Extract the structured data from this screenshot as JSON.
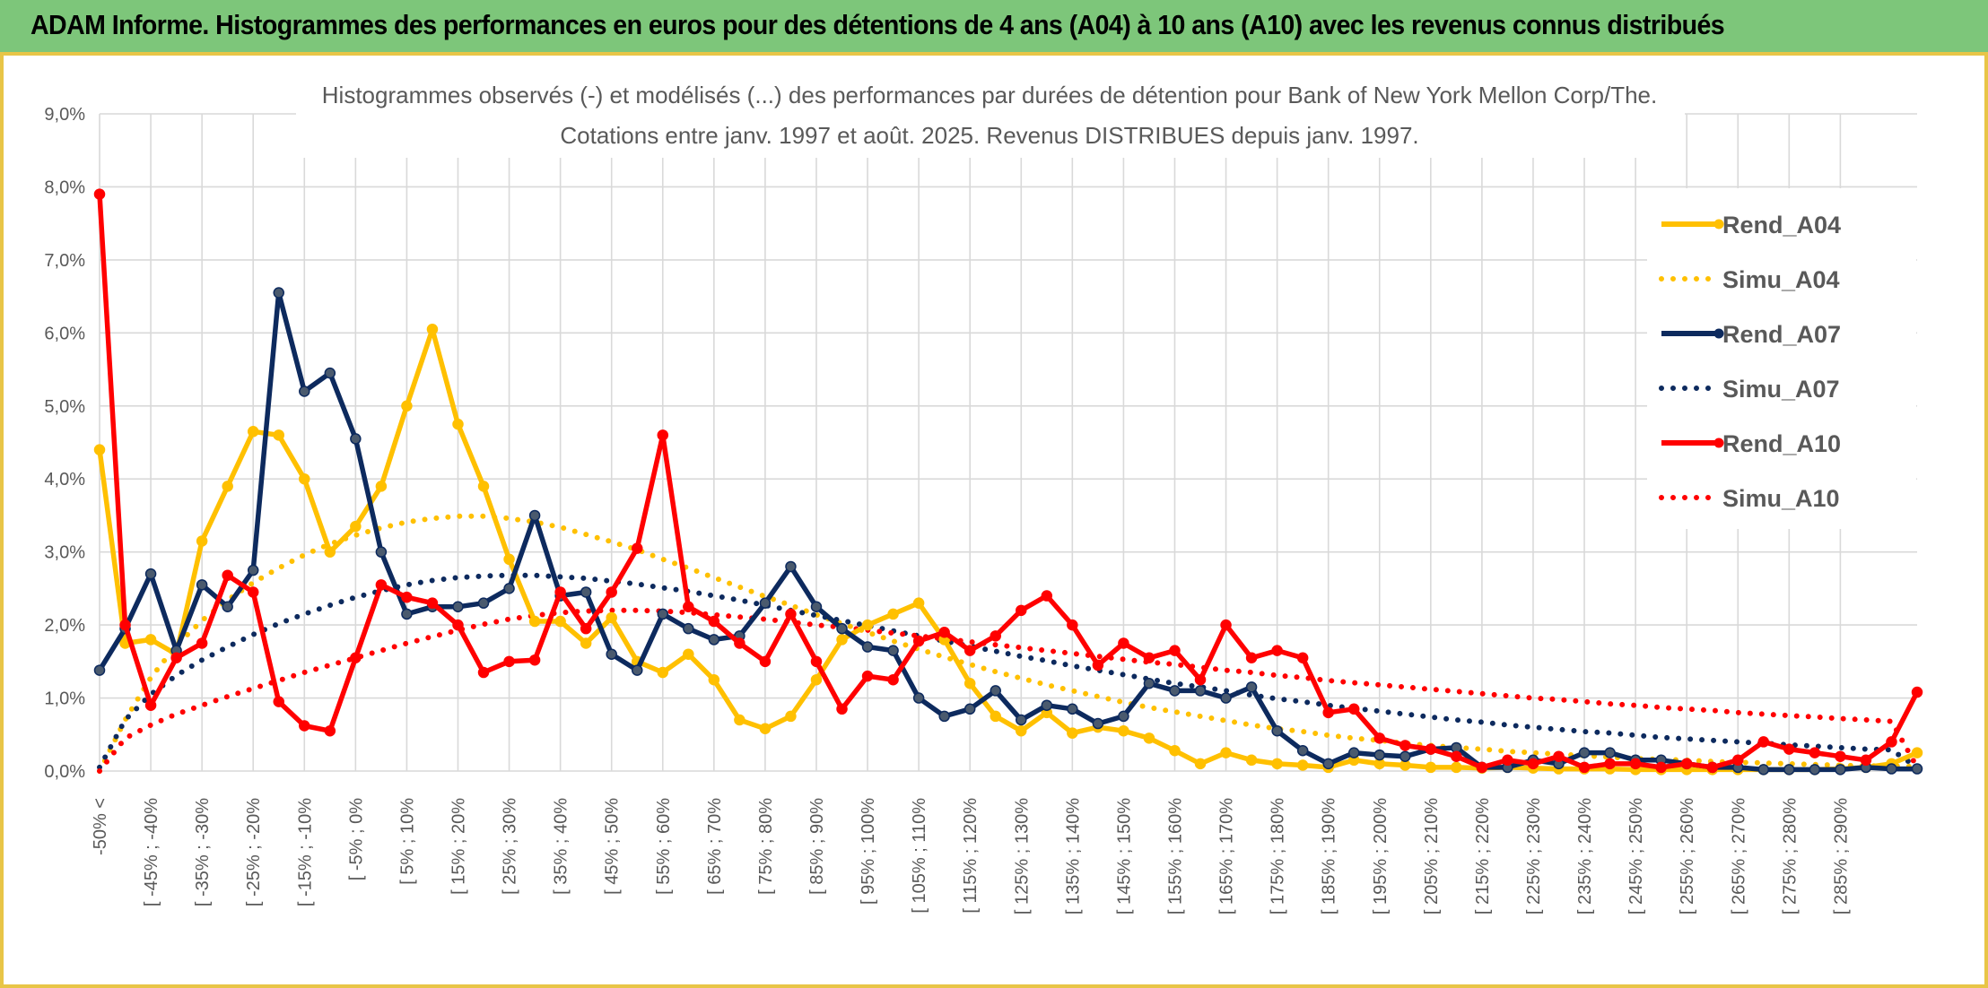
{
  "header": {
    "title": "ADAM Informe. Histogrammes des performances en euros pour des détentions de 4 ans (A04) à 10 ans (A10) avec les revenus connus distribués"
  },
  "chart_data": {
    "type": "line",
    "title_line1": "Histogrammes observés (-) et modélisés (...) des performances par durées de détention pour Bank of New York Mellon Corp/The.",
    "title_line2": "Cotations entre janv. 1997 et août. 2025. Revenus DISTRIBUES depuis janv. 1997.",
    "ylim": [
      0,
      9
    ],
    "yticks": [
      "0,0%",
      "1,0%",
      "2,0%",
      "3,0%",
      "4,0%",
      "5,0%",
      "6,0%",
      "7,0%",
      "8,0%",
      "9,0%"
    ],
    "y_unit": "%",
    "grid": true,
    "legend_position": "right",
    "x_labels": [
      "-50% <",
      "[ -45% ; -40%",
      "[ -35% ; -30%",
      "[ -25% ; -20%",
      "[ -15% ; -10%",
      "[ -5% ; 0%",
      "[ 5% ; 10%",
      "[ 15% ; 20%",
      "[ 25% ; 30%",
      "[ 35% ; 40%",
      "[ 45% ; 50%",
      "[ 55% ; 60%",
      "[ 65% ; 70%",
      "[ 75% ; 80%",
      "[ 85% ; 90%",
      "[ 95% ; 100%",
      "[ 105% ; 110%",
      "[ 115% ; 120%",
      "[ 125% ; 130%",
      "[ 135% ; 140%",
      "[ 145% ; 150%",
      "[ 155% ; 160%",
      "[ 165% ; 170%",
      "[ 175% ; 180%",
      "[ 185% ; 190%",
      "[ 195% ; 200%",
      "[ 205% ; 210%",
      "[ 215% ; 220%",
      "[ 225% ; 230%",
      "[ 235% ; 240%",
      "[ 245% ; 250%",
      "[ 255% ; 260%",
      "[ 265% ; 270%",
      "[ 275% ; 280%",
      "[ 285% ; 290%"
    ],
    "series": [
      {
        "name": "Rend_A04",
        "style": "solid",
        "color": "#ffc000",
        "values": [
          4.4,
          1.75,
          1.8,
          1.6,
          3.15,
          3.9,
          4.65,
          4.6,
          4.0,
          3.0,
          3.35,
          3.9,
          5.0,
          6.05,
          4.75,
          3.9,
          2.9,
          2.05,
          2.05,
          1.75,
          2.1,
          1.5,
          1.35,
          1.6,
          1.25,
          0.7,
          0.58,
          0.75,
          1.25,
          1.8,
          2.0,
          2.15,
          2.3,
          1.8,
          1.2,
          0.75,
          0.55,
          0.8,
          0.52,
          0.6,
          0.55,
          0.45,
          0.28,
          0.1,
          0.25,
          0.15,
          0.1,
          0.08,
          0.05,
          0.15,
          0.1,
          0.08,
          0.05,
          0.05,
          0.04,
          0.05,
          0.04,
          0.03,
          0.03,
          0.03,
          0.02,
          0.02,
          0.02,
          0.02,
          0.02,
          0.02,
          0.02,
          0.02,
          0.03,
          0.05,
          0.1,
          0.25
        ]
      },
      {
        "name": "Simu_A04",
        "style": "dotted",
        "color": "#ffc000",
        "values": [
          0.0,
          0.7,
          1.28,
          1.72,
          2.06,
          2.34,
          2.58,
          2.78,
          2.96,
          3.11,
          3.23,
          3.33,
          3.41,
          3.46,
          3.49,
          3.49,
          3.46,
          3.41,
          3.34,
          3.24,
          3.14,
          3.03,
          2.9,
          2.78,
          2.65,
          2.52,
          2.39,
          2.27,
          2.14,
          2.02,
          1.9,
          1.78,
          1.67,
          1.56,
          1.46,
          1.36,
          1.27,
          1.18,
          1.1,
          1.02,
          0.94,
          0.87,
          0.81,
          0.75,
          0.69,
          0.63,
          0.58,
          0.54,
          0.49,
          0.45,
          0.42,
          0.38,
          0.35,
          0.32,
          0.3,
          0.27,
          0.25,
          0.23,
          0.21,
          0.19,
          0.17,
          0.16,
          0.15,
          0.13,
          0.12,
          0.11,
          0.1,
          0.09,
          0.08,
          0.07,
          0.07,
          0.06
        ]
      },
      {
        "name": "Rend_A07",
        "style": "solid",
        "color": "#0d2a5e",
        "values": [
          1.38,
          1.95,
          2.7,
          1.65,
          2.55,
          2.25,
          2.75,
          6.55,
          5.2,
          5.45,
          4.55,
          3.0,
          2.15,
          2.25,
          2.25,
          2.3,
          2.5,
          3.5,
          2.4,
          2.45,
          1.6,
          1.38,
          2.15,
          1.95,
          1.8,
          1.85,
          2.3,
          2.8,
          2.25,
          1.95,
          1.7,
          1.65,
          1.0,
          0.75,
          0.85,
          1.1,
          0.7,
          0.9,
          0.85,
          0.65,
          0.75,
          1.2,
          1.1,
          1.1,
          1.0,
          1.15,
          0.55,
          0.28,
          0.1,
          0.25,
          0.22,
          0.2,
          0.3,
          0.32,
          0.05,
          0.05,
          0.15,
          0.1,
          0.25,
          0.25,
          0.15,
          0.15,
          0.1,
          0.05,
          0.05,
          0.02,
          0.02,
          0.02,
          0.02,
          0.05,
          0.03,
          0.03
        ]
      },
      {
        "name": "Simu_A07",
        "style": "dotted",
        "color": "#0d2a5e",
        "values": [
          0.05,
          0.7,
          1.05,
          1.31,
          1.52,
          1.7,
          1.87,
          2.02,
          2.15,
          2.27,
          2.38,
          2.47,
          2.55,
          2.61,
          2.65,
          2.67,
          2.68,
          2.68,
          2.66,
          2.64,
          2.6,
          2.56,
          2.51,
          2.46,
          2.4,
          2.34,
          2.27,
          2.2,
          2.13,
          2.06,
          1.99,
          1.92,
          1.85,
          1.78,
          1.71,
          1.64,
          1.57,
          1.51,
          1.44,
          1.38,
          1.32,
          1.26,
          1.2,
          1.15,
          1.1,
          1.04,
          0.99,
          0.95,
          0.9,
          0.86,
          0.82,
          0.78,
          0.74,
          0.7,
          0.67,
          0.63,
          0.6,
          0.57,
          0.54,
          0.52,
          0.49,
          0.46,
          0.44,
          0.42,
          0.4,
          0.38,
          0.36,
          0.34,
          0.32,
          0.3,
          0.29,
          0.05
        ]
      },
      {
        "name": "Rend_A10",
        "style": "solid",
        "color": "#ff0000",
        "values": [
          7.9,
          2.0,
          0.9,
          1.55,
          1.75,
          2.68,
          2.45,
          0.95,
          0.62,
          0.55,
          1.55,
          2.55,
          2.38,
          2.3,
          2.0,
          1.35,
          1.5,
          1.52,
          2.45,
          1.95,
          2.45,
          3.05,
          4.6,
          2.25,
          2.05,
          1.75,
          1.5,
          2.15,
          1.5,
          0.85,
          1.3,
          1.25,
          1.78,
          1.9,
          1.65,
          1.85,
          2.2,
          2.4,
          2.0,
          1.45,
          1.75,
          1.55,
          1.65,
          1.25,
          2.0,
          1.55,
          1.65,
          1.55,
          0.8,
          0.85,
          0.45,
          0.35,
          0.3,
          0.2,
          0.05,
          0.15,
          0.1,
          0.2,
          0.05,
          0.1,
          0.1,
          0.05,
          0.1,
          0.05,
          0.15,
          0.4,
          0.3,
          0.25,
          0.2,
          0.15,
          0.4,
          1.08
        ]
      },
      {
        "name": "Simu_A10",
        "style": "dotted",
        "color": "#ff0000",
        "values": [
          0.0,
          0.45,
          0.63,
          0.78,
          0.9,
          1.02,
          1.13,
          1.24,
          1.35,
          1.45,
          1.55,
          1.65,
          1.75,
          1.84,
          1.93,
          2.01,
          2.08,
          2.13,
          2.17,
          2.19,
          2.2,
          2.2,
          2.19,
          2.17,
          2.14,
          2.11,
          2.08,
          2.04,
          2.0,
          1.97,
          1.93,
          1.89,
          1.85,
          1.81,
          1.77,
          1.73,
          1.69,
          1.65,
          1.61,
          1.57,
          1.53,
          1.49,
          1.46,
          1.42,
          1.38,
          1.35,
          1.31,
          1.28,
          1.24,
          1.21,
          1.18,
          1.15,
          1.12,
          1.09,
          1.06,
          1.03,
          1.0,
          0.98,
          0.95,
          0.92,
          0.9,
          0.87,
          0.85,
          0.83,
          0.8,
          0.78,
          0.76,
          0.74,
          0.72,
          0.7,
          0.68,
          0.05
        ]
      }
    ]
  }
}
